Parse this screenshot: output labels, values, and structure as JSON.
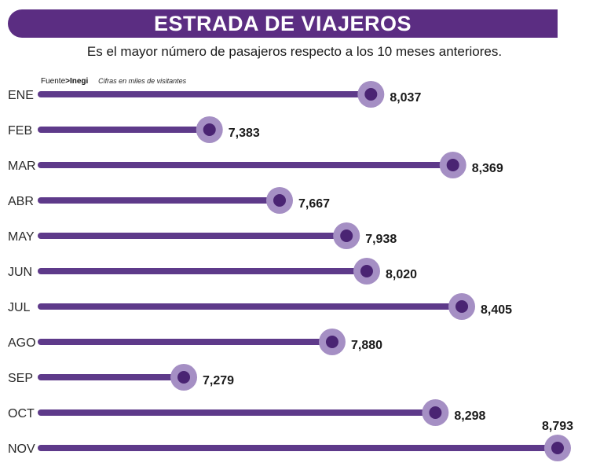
{
  "header": {
    "title": "ESTRADA DE VIAJEROS",
    "subtitle": "Es el mayor número de pasajeros respecto a los 10 meses anteriores."
  },
  "source": {
    "label": "Fuente",
    "separator": ">",
    "org": "Inegi",
    "note": "Cifras en miles de visitantes"
  },
  "colors": {
    "accent": "#5b2d82",
    "halo": "#a58fc4",
    "bar": "#5e3a8a",
    "dot": "#4a2473",
    "text": "#1a1a1a"
  },
  "chart_data": {
    "type": "bar",
    "orientation": "horizontal",
    "title": "ESTRADA DE VIAJEROS",
    "subtitle": "Es el mayor número de pasajeros respecto a los 10 meses anteriores.",
    "unit_note": "Cifras en miles de visitantes",
    "categories": [
      "ENE",
      "FEB",
      "MAR",
      "ABR",
      "MAY",
      "JUN",
      "JUL",
      "AGO",
      "SEP",
      "OCT",
      "NOV"
    ],
    "values": [
      8037,
      7383,
      8369,
      7667,
      7938,
      8020,
      8405,
      7880,
      7279,
      8298,
      8793
    ],
    "labels": [
      "8,037",
      "7,383",
      "8,369",
      "7,667",
      "7,938",
      "8,020",
      "8,405",
      "7,880",
      "7,279",
      "8,298",
      "8,793"
    ],
    "xlim": [
      6700,
      8793
    ]
  }
}
